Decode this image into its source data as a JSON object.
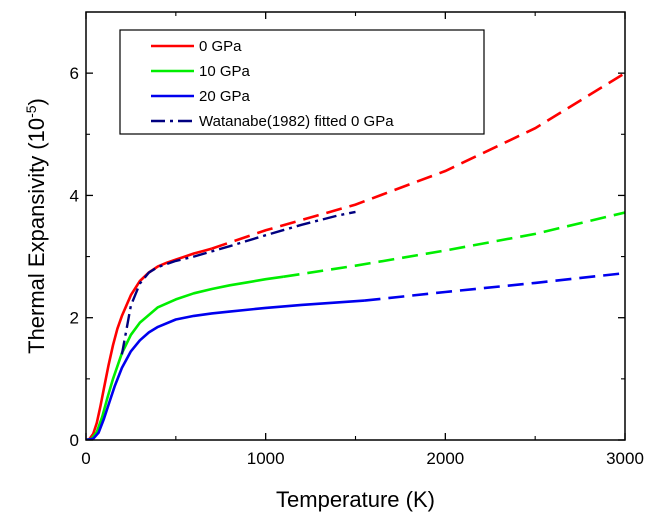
{
  "chart_data": {
    "type": "line",
    "xlabel": "Temperature (K)",
    "ylabel": "Thermal Expansivity (10",
    "ylabel_exponent": "-5",
    "ylabel_suffix": ")",
    "xlim": [
      0,
      3000
    ],
    "ylim": [
      0,
      7
    ],
    "x_ticks": [
      0,
      1000,
      2000,
      3000
    ],
    "x_tick_labels": [
      "0",
      "1000",
      "2000",
      "3000"
    ],
    "y_ticks": [
      0,
      2,
      4,
      6
    ],
    "y_tick_labels": [
      "0",
      "2",
      "4",
      "6"
    ],
    "grid": false,
    "legend_position": "top-left",
    "series": [
      {
        "name": "0 GPa",
        "color": "#ff0000",
        "solid": {
          "x": [
            0,
            20,
            40,
            60,
            80,
            100,
            125,
            150,
            175,
            200,
            250,
            300,
            350,
            400,
            450,
            500,
            550,
            600,
            650,
            700
          ],
          "y": [
            0,
            0.02,
            0.1,
            0.28,
            0.55,
            0.85,
            1.22,
            1.55,
            1.82,
            2.03,
            2.37,
            2.6,
            2.74,
            2.84,
            2.9,
            2.95,
            3.0,
            3.05,
            3.09,
            3.13
          ]
        },
        "dashed": {
          "x": [
            700,
            1000,
            1500,
            2000,
            2500,
            3000
          ],
          "y": [
            3.13,
            3.43,
            3.85,
            4.4,
            5.1,
            6.0
          ]
        }
      },
      {
        "name": "10 GPa",
        "color": "#00ee00",
        "solid": {
          "x": [
            0,
            30,
            60,
            90,
            120,
            150,
            200,
            250,
            300,
            400,
            500,
            600,
            700,
            800,
            900,
            1000,
            1100
          ],
          "y": [
            0,
            0.02,
            0.13,
            0.38,
            0.7,
            1.0,
            1.42,
            1.72,
            1.92,
            2.17,
            2.3,
            2.4,
            2.47,
            2.53,
            2.58,
            2.63,
            2.67
          ]
        },
        "dashed": {
          "x": [
            1100,
            1500,
            2000,
            2500,
            3000
          ],
          "y": [
            2.67,
            2.85,
            3.1,
            3.37,
            3.72
          ]
        }
      },
      {
        "name": "20 GPa",
        "color": "#0000ee",
        "solid": {
          "x": [
            0,
            40,
            70,
            100,
            130,
            160,
            200,
            250,
            300,
            350,
            400,
            500,
            600,
            700,
            800,
            1000,
            1200,
            1400,
            1550
          ],
          "y": [
            0,
            0.02,
            0.12,
            0.35,
            0.62,
            0.88,
            1.18,
            1.45,
            1.63,
            1.76,
            1.85,
            1.97,
            2.03,
            2.07,
            2.1,
            2.16,
            2.21,
            2.25,
            2.28
          ]
        },
        "dashed": {
          "x": [
            1550,
            2000,
            2500,
            3000
          ],
          "y": [
            2.28,
            2.42,
            2.57,
            2.73
          ]
        }
      },
      {
        "name": "Watanabe(1982) fitted 0 GPa",
        "color": "#000080",
        "style": "dashdot",
        "x": [
          200,
          250,
          300,
          350,
          400,
          500,
          600,
          800,
          1000,
          1200,
          1400,
          1500
        ],
        "y": [
          1.4,
          2.2,
          2.56,
          2.74,
          2.83,
          2.93,
          3.0,
          3.17,
          3.35,
          3.52,
          3.67,
          3.73
        ]
      }
    ]
  }
}
